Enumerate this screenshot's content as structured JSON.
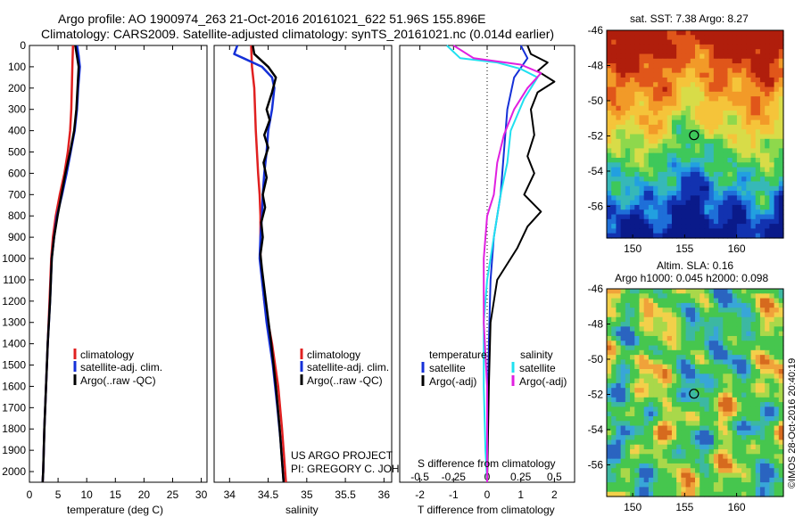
{
  "header": {
    "line1": "Argo profile: AO 1900974_263 21-Oct-2016 20161021_622 51.96S 155.896E",
    "line2": "Climatology: CARS2009. Satellite-adjusted climatology: synTS_20161021.nc (0.014d earlier)"
  },
  "credits": {
    "project": "US ARGO PROJECT",
    "pi": "PI: GREGORY C. JOHNSON",
    "imos": "©IMOS 28-Oct-2016 20:40:19"
  },
  "colors": {
    "climatology": "#e02020",
    "satellite": "#1530d8",
    "argo": "#000000",
    "salinity_satellite": "#20e0f0",
    "salinity_argo": "#e020e0"
  },
  "chart_data": [
    {
      "type": "line",
      "panel": "temperature",
      "xlabel": "temperature (deg C)",
      "xlim": [
        0,
        31
      ],
      "xticks": [
        "0",
        "5",
        "10",
        "15",
        "20",
        "25",
        "30"
      ],
      "ylim": [
        2050,
        0
      ],
      "yticks": [
        "0",
        "100",
        "200",
        "300",
        "400",
        "500",
        "600",
        "700",
        "800",
        "900",
        "1000",
        "1100",
        "1200",
        "1300",
        "1400",
        "1500",
        "1600",
        "1700",
        "1800",
        "1900",
        "2000"
      ],
      "legend": [
        "climatology",
        "satellite-adj. clim.",
        "Argo(..raw -QC)"
      ],
      "series": [
        {
          "name": "climatology",
          "color": "#e02020",
          "points": [
            [
              7.6,
              0
            ],
            [
              7.5,
              100
            ],
            [
              7.4,
              200
            ],
            [
              7.3,
              300
            ],
            [
              7.1,
              400
            ],
            [
              6.7,
              500
            ],
            [
              6.1,
              600
            ],
            [
              5.3,
              700
            ],
            [
              4.6,
              800
            ],
            [
              4.1,
              900
            ],
            [
              3.8,
              1000
            ],
            [
              3.5,
              1200
            ],
            [
              3.2,
              1400
            ],
            [
              2.9,
              1600
            ],
            [
              2.6,
              1800
            ],
            [
              2.4,
              2000
            ],
            [
              2.3,
              2050
            ]
          ]
        },
        {
          "name": "satellite-adj. clim.",
          "color": "#1530d8",
          "points": [
            [
              8.3,
              0
            ],
            [
              8.6,
              50
            ],
            [
              8.8,
              100
            ],
            [
              8.5,
              200
            ],
            [
              8.3,
              300
            ],
            [
              7.9,
              400
            ],
            [
              7.2,
              500
            ],
            [
              6.5,
              600
            ],
            [
              5.7,
              700
            ],
            [
              4.8,
              800
            ],
            [
              4.3,
              900
            ],
            [
              3.9,
              1000
            ],
            [
              3.6,
              1200
            ],
            [
              3.2,
              1400
            ],
            [
              2.9,
              1600
            ],
            [
              2.6,
              1800
            ],
            [
              2.4,
              2000
            ],
            [
              2.3,
              2050
            ]
          ]
        },
        {
          "name": "Argo(..raw -QC)",
          "color": "#000000",
          "points": [
            [
              8.0,
              0
            ],
            [
              8.3,
              50
            ],
            [
              8.6,
              100
            ],
            [
              8.4,
              200
            ],
            [
              8.2,
              300
            ],
            [
              7.8,
              400
            ],
            [
              7.1,
              500
            ],
            [
              6.3,
              600
            ],
            [
              5.6,
              700
            ],
            [
              4.9,
              800
            ],
            [
              4.3,
              900
            ],
            [
              3.9,
              1000
            ],
            [
              3.6,
              1200
            ],
            [
              3.2,
              1400
            ],
            [
              2.9,
              1600
            ],
            [
              2.6,
              1800
            ],
            [
              2.4,
              2000
            ],
            [
              2.3,
              2050
            ]
          ]
        }
      ]
    },
    {
      "type": "line",
      "panel": "salinity",
      "xlabel": "salinity",
      "xlim": [
        33.8,
        36.1
      ],
      "xticks": [
        "34",
        "34.5",
        "35",
        "35.5",
        "36"
      ],
      "ylim": [
        2050,
        0
      ],
      "legend": [
        "climatology",
        "satellite-adj. clim.",
        "Argo(..raw -QC)"
      ],
      "series": [
        {
          "name": "climatology",
          "color": "#e02020",
          "points": [
            [
              34.28,
              0
            ],
            [
              34.29,
              100
            ],
            [
              34.32,
              200
            ],
            [
              34.34,
              400
            ],
            [
              34.37,
              600
            ],
            [
              34.39,
              700
            ],
            [
              34.4,
              800
            ],
            [
              34.4,
              900
            ],
            [
              34.4,
              1000
            ],
            [
              34.45,
              1200
            ],
            [
              34.55,
              1400
            ],
            [
              34.63,
              1600
            ],
            [
              34.68,
              1800
            ],
            [
              34.72,
              2000
            ],
            [
              34.73,
              2050
            ]
          ]
        },
        {
          "name": "satellite-adj. clim.",
          "color": "#1530d8",
          "points": [
            [
              34.1,
              0
            ],
            [
              34.06,
              40
            ],
            [
              34.18,
              60
            ],
            [
              34.42,
              100
            ],
            [
              34.55,
              150
            ],
            [
              34.58,
              200
            ],
            [
              34.55,
              300
            ],
            [
              34.5,
              400
            ],
            [
              34.48,
              500
            ],
            [
              34.45,
              600
            ],
            [
              34.43,
              700
            ],
            [
              34.42,
              800
            ],
            [
              34.4,
              900
            ],
            [
              34.39,
              1000
            ],
            [
              34.42,
              1100
            ],
            [
              34.48,
              1300
            ],
            [
              34.56,
              1500
            ],
            [
              34.62,
              1700
            ],
            [
              34.66,
              1850
            ],
            [
              34.7,
              2050
            ]
          ]
        },
        {
          "name": "Argo(..raw -QC)",
          "color": "#000000",
          "points": [
            [
              34.3,
              0
            ],
            [
              34.32,
              40
            ],
            [
              34.5,
              100
            ],
            [
              34.6,
              150
            ],
            [
              34.55,
              220
            ],
            [
              34.48,
              300
            ],
            [
              34.52,
              350
            ],
            [
              34.45,
              420
            ],
            [
              34.5,
              480
            ],
            [
              34.44,
              550
            ],
            [
              34.48,
              620
            ],
            [
              34.43,
              700
            ],
            [
              34.46,
              760
            ],
            [
              34.41,
              830
            ],
            [
              34.43,
              900
            ],
            [
              34.4,
              980
            ],
            [
              34.42,
              1050
            ],
            [
              34.47,
              1200
            ],
            [
              34.54,
              1400
            ],
            [
              34.6,
              1600
            ],
            [
              34.65,
              1800
            ],
            [
              34.68,
              1950
            ],
            [
              34.7,
              2050
            ]
          ]
        }
      ]
    },
    {
      "type": "line",
      "panel": "difference",
      "xlabel": "T difference from climatology",
      "xlabel2": "S difference from climatology",
      "xlim": [
        -2.6,
        2.6
      ],
      "xticks": [
        "-2",
        "-1",
        "0",
        "1",
        "2"
      ],
      "xticks2": [
        "-0.5",
        "-0.25",
        "0",
        "0.25",
        "0.5"
      ],
      "ylim": [
        2050,
        0
      ],
      "legend_groups": [
        "temperature",
        "salinity"
      ],
      "legend": [
        "satellite",
        "Argo(-adj)",
        "satellite",
        "Argo(-adj)"
      ],
      "series": [
        {
          "name": "satellite",
          "group": "temperature",
          "color": "#1530d8",
          "points": [
            [
              1.0,
              0
            ],
            [
              1.2,
              60
            ],
            [
              0.8,
              150
            ],
            [
              0.6,
              300
            ],
            [
              0.5,
              500
            ],
            [
              0.4,
              700
            ],
            [
              0.2,
              900
            ],
            [
              0.1,
              1100
            ],
            [
              0.05,
              1400
            ],
            [
              0.0,
              1800
            ],
            [
              0.0,
              2050
            ]
          ]
        },
        {
          "name": "Argo(-adj)",
          "group": "temperature",
          "color": "#000000",
          "points": [
            [
              1.2,
              0
            ],
            [
              1.3,
              40
            ],
            [
              1.8,
              80
            ],
            [
              1.5,
              120
            ],
            [
              2.0,
              170
            ],
            [
              1.5,
              220
            ],
            [
              1.3,
              300
            ],
            [
              1.4,
              420
            ],
            [
              1.2,
              520
            ],
            [
              1.4,
              600
            ],
            [
              1.1,
              700
            ],
            [
              1.6,
              780
            ],
            [
              1.2,
              850
            ],
            [
              0.9,
              950
            ],
            [
              0.3,
              1100
            ],
            [
              0.1,
              1300
            ],
            [
              0.05,
              1600
            ],
            [
              0.0,
              2050
            ]
          ]
        },
        {
          "name": "satellite",
          "group": "salinity",
          "color": "#20e0f0",
          "points": [
            [
              -1.2,
              0
            ],
            [
              -0.8,
              60
            ],
            [
              0.3,
              80
            ],
            [
              1.0,
              110
            ],
            [
              1.5,
              150
            ],
            [
              1.1,
              250
            ],
            [
              0.7,
              400
            ],
            [
              0.6,
              550
            ],
            [
              0.4,
              700
            ],
            [
              0.2,
              900
            ],
            [
              0.0,
              1100
            ],
            [
              -0.1,
              1300
            ],
            [
              -0.1,
              1600
            ],
            [
              -0.05,
              1900
            ],
            [
              0.0,
              2050
            ]
          ]
        },
        {
          "name": "Argo(-adj)",
          "group": "salinity",
          "color": "#e020e0",
          "points": [
            [
              -1.0,
              0
            ],
            [
              -0.4,
              60
            ],
            [
              1.0,
              90
            ],
            [
              1.6,
              130
            ],
            [
              1.2,
              200
            ],
            [
              0.8,
              300
            ],
            [
              0.5,
              420
            ],
            [
              0.3,
              550
            ],
            [
              0.2,
              700
            ],
            [
              0.0,
              800
            ],
            [
              -0.1,
              1000
            ],
            [
              -0.1,
              1300
            ],
            [
              0.0,
              1600
            ],
            [
              0.0,
              2050
            ]
          ]
        }
      ]
    },
    {
      "type": "heatmap",
      "panel": "sst-map",
      "title": "sat. SST: 7.38 Argo: 8.27",
      "xlim": [
        147.5,
        164.5
      ],
      "ylim": [
        -57.8,
        -46
      ],
      "xticks": [
        "150",
        "155",
        "160"
      ],
      "yticks": [
        "-46",
        "-48",
        "-50",
        "-52",
        "-54",
        "-56"
      ],
      "marker": {
        "lon": 155.9,
        "lat": -51.96
      }
    },
    {
      "type": "heatmap",
      "panel": "sla-map",
      "title": "Altim. SLA: 0.16",
      "subtitle": "Argo h1000: 0.045 h2000: 0.098",
      "xlim": [
        147.5,
        164.5
      ],
      "ylim": [
        -57.8,
        -46
      ],
      "xticks": [
        "150",
        "155",
        "160"
      ],
      "yticks": [
        "-46",
        "-48",
        "-50",
        "-52",
        "-54",
        "-56"
      ],
      "marker": {
        "lon": 155.9,
        "lat": -51.96
      }
    }
  ]
}
